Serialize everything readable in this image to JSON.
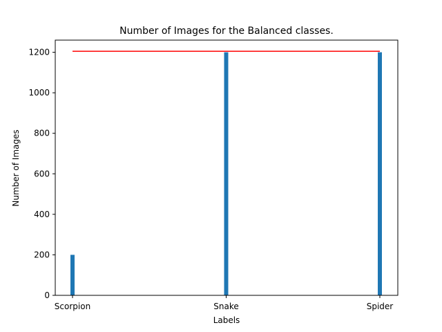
{
  "chart_data": {
    "type": "bar",
    "title": "Number of Images for the Balanced classes.",
    "xlabel": "Labels",
    "ylabel": "Number of Images",
    "categories": [
      "Scorpion",
      "Snake",
      "Spider"
    ],
    "values": [
      200,
      1200,
      1200
    ],
    "ylim": [
      0,
      1260
    ],
    "yticks": [
      0,
      200,
      400,
      600,
      800,
      1000,
      1200
    ],
    "reference_line": {
      "value": 1205,
      "color": "#ff0000"
    },
    "bar_color": "#1f77b4",
    "grid": false,
    "legend": "none"
  }
}
